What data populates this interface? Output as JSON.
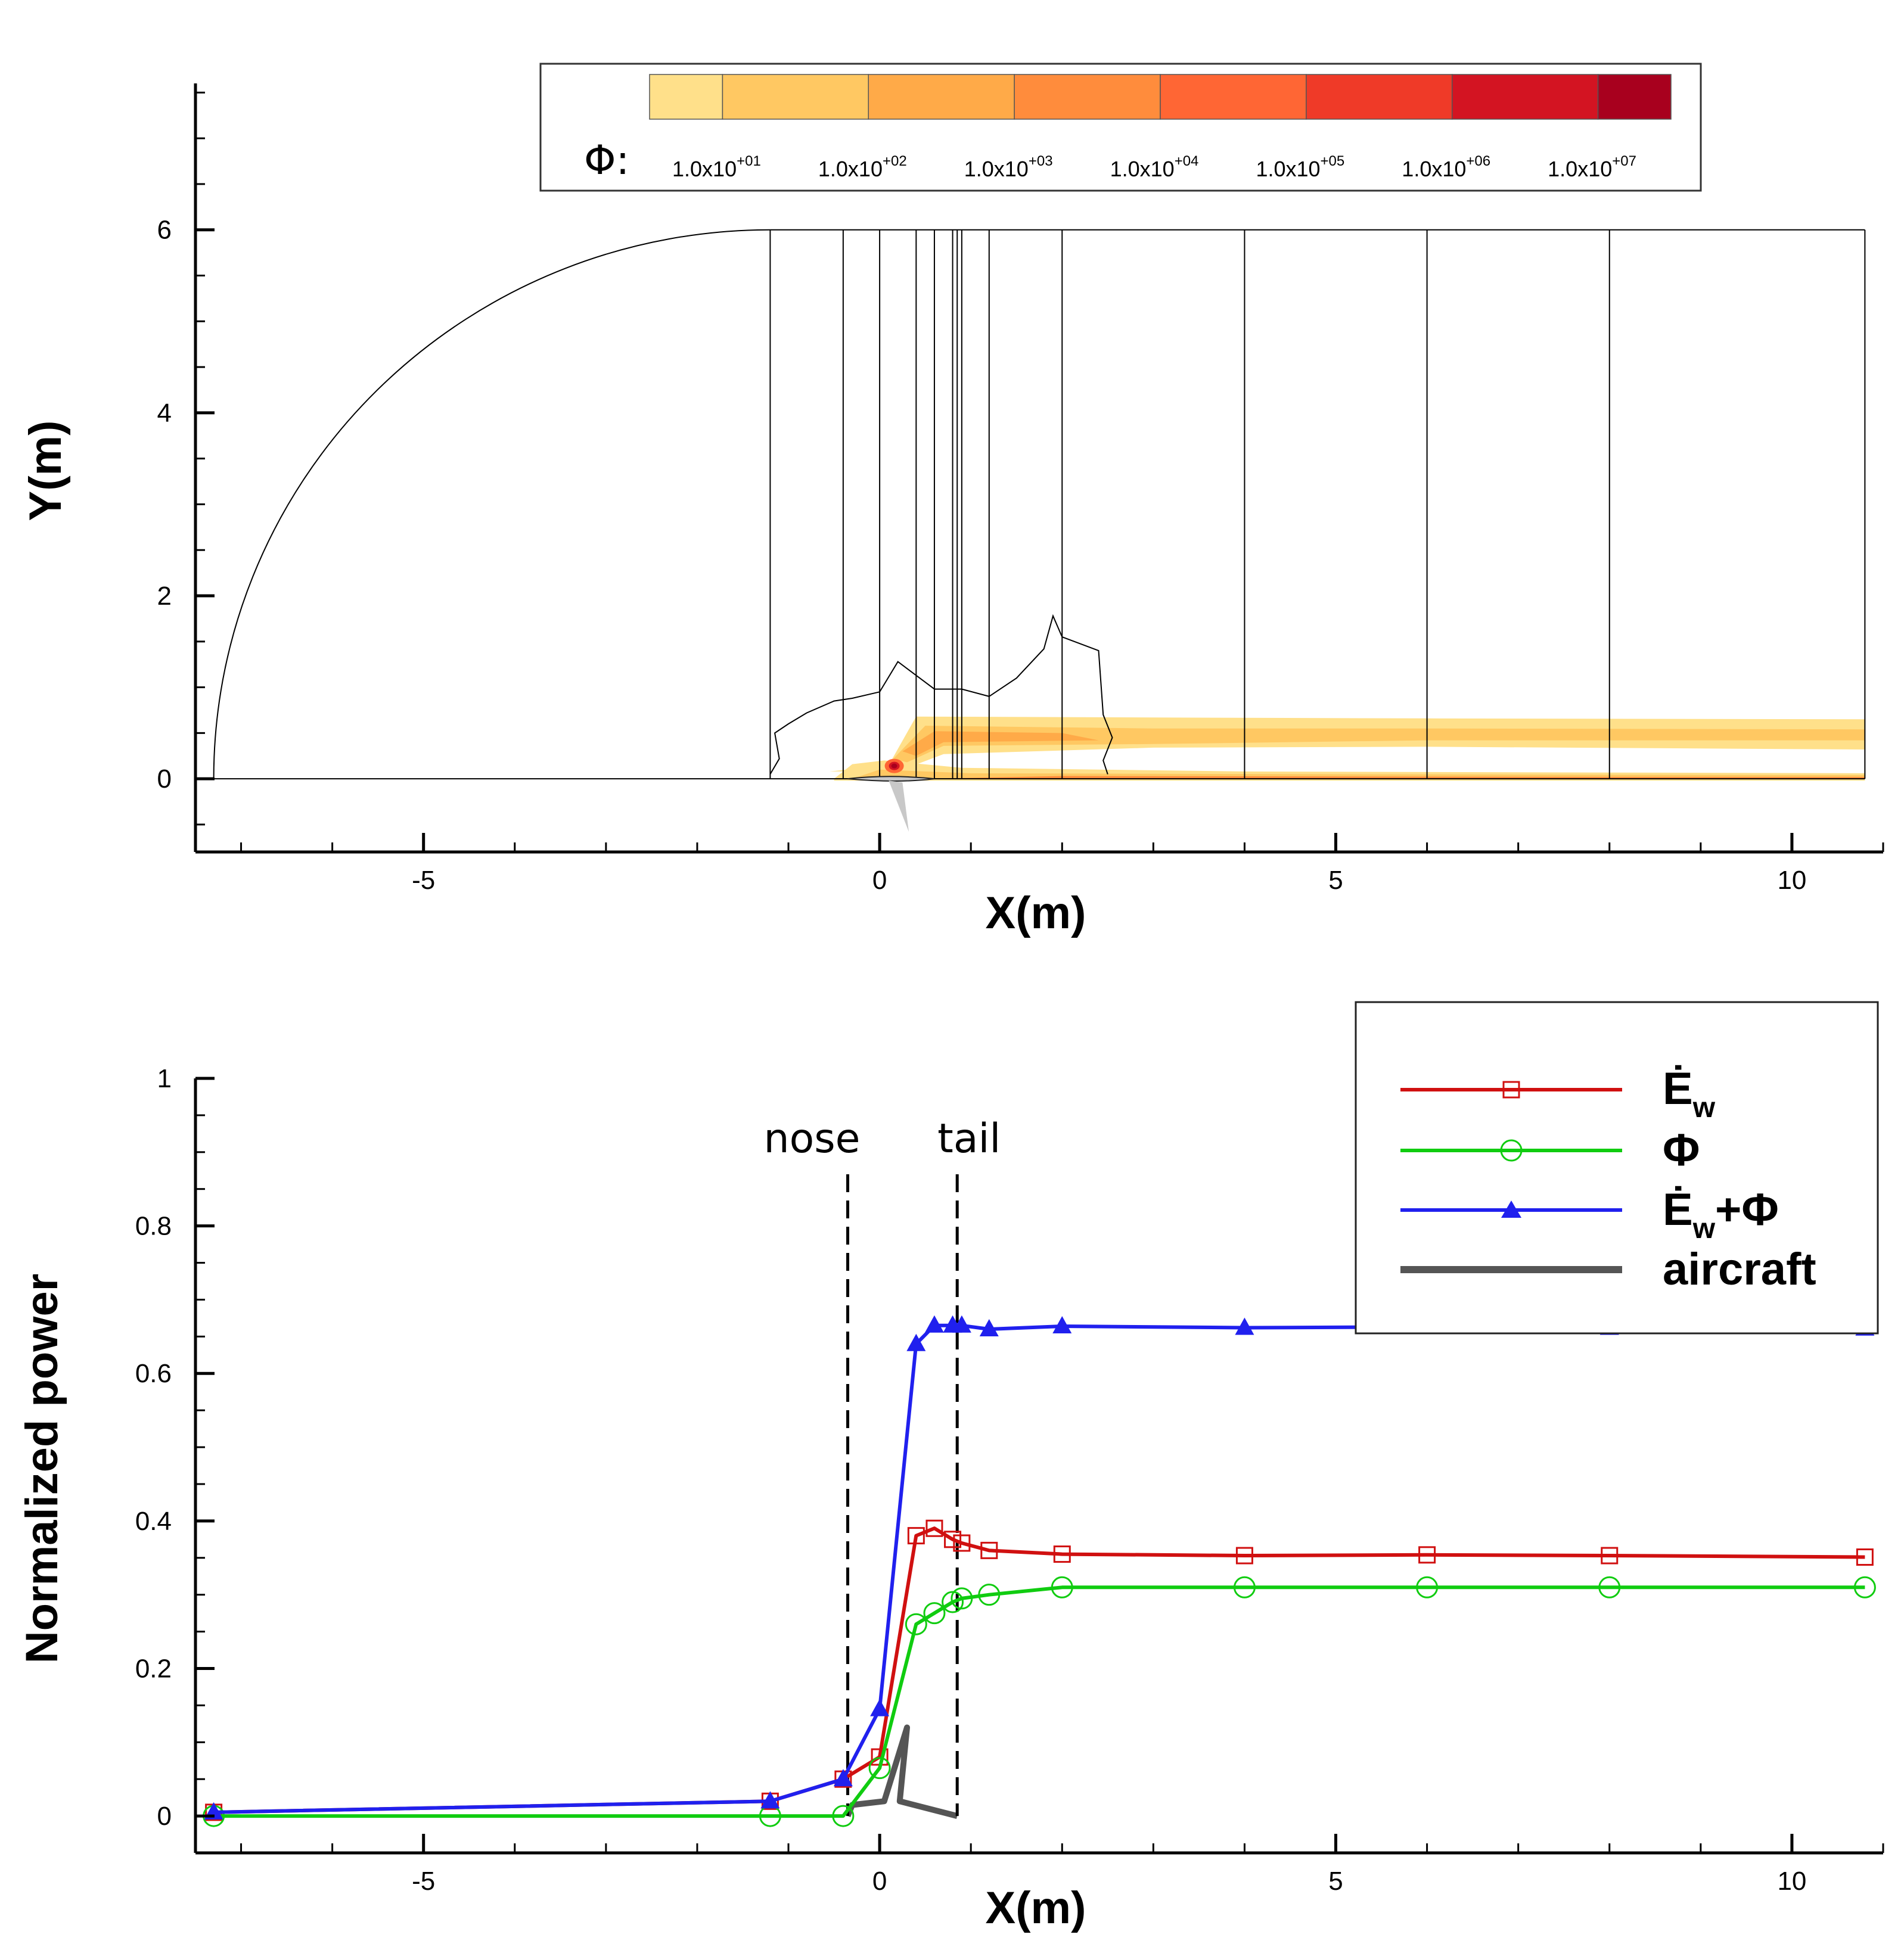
{
  "colors": {
    "E_w": "#d01010",
    "Phi": "#10cc10",
    "E_w_plus_Phi": "#2020ee",
    "aircraft": "#555555",
    "contours": [
      "#ffe08a",
      "#ffc862",
      "#ffaa48",
      "#ff8c3c",
      "#ff6634",
      "#ef3a28",
      "#d31422",
      "#a8001e"
    ]
  },
  "chart_data": [
    {
      "type": "contour",
      "xlabel": "X(m)",
      "ylabel": "Y(m)",
      "xlim": [
        -7.5,
        11
      ],
      "ylim": [
        -0.8,
        7.6
      ],
      "xticks": [
        -5,
        0,
        5,
        10
      ],
      "yticks": [
        0,
        2,
        4,
        6
      ],
      "colorbar": {
        "symbol": "Φ:",
        "levels": [
          {
            "mantissa": "1.0x10",
            "exp": "+01"
          },
          {
            "mantissa": "1.0x10",
            "exp": "+02"
          },
          {
            "mantissa": "1.0x10",
            "exp": "+03"
          },
          {
            "mantissa": "1.0x10",
            "exp": "+04"
          },
          {
            "mantissa": "1.0x10",
            "exp": "+05"
          },
          {
            "mantissa": "1.0x10",
            "exp": "+06"
          },
          {
            "mantissa": "1.0x10",
            "exp": "+07"
          }
        ]
      },
      "domain": {
        "x_inlet": -7.3,
        "x_outlet": 10.8,
        "y_top": 6
      },
      "section_planes_x": [
        -1.2,
        -0.4,
        0,
        0.4,
        0.6,
        0.8,
        0.85,
        0.9,
        1.2,
        2,
        4,
        6,
        8,
        10.8
      ]
    },
    {
      "type": "line",
      "xlabel": "X(m)",
      "ylabel": "Normalized power",
      "xlim": [
        -7.5,
        11
      ],
      "ylim": [
        -0.05,
        1
      ],
      "xticks": [
        -5,
        0,
        5,
        10
      ],
      "yticks": [
        0,
        0.2,
        0.4,
        0.6,
        0.8,
        1
      ],
      "annotations": [
        {
          "label": "nose",
          "x": -0.35
        },
        {
          "label": "tail",
          "x": 0.85
        }
      ],
      "legend_labels": {
        "e_w": {
          "base": "Ė",
          "sub": "w"
        },
        "phi": "Φ",
        "sum": {
          "base": "Ė",
          "sub": "w",
          "rest": "+Φ"
        },
        "aircraft": "aircraft"
      },
      "series": [
        {
          "name": "E_w",
          "marker": "square",
          "x": [
            -7.3,
            -1.2,
            -0.4,
            0,
            0.4,
            0.6,
            0.8,
            0.9,
            1.2,
            2,
            4,
            6,
            8,
            10.8
          ],
          "y": [
            0.005,
            0.02,
            0.05,
            0.08,
            0.38,
            0.39,
            0.375,
            0.37,
            0.36,
            0.355,
            0.353,
            0.354,
            0.353,
            0.351
          ]
        },
        {
          "name": "Phi",
          "marker": "circle",
          "x": [
            -7.3,
            -1.2,
            -0.4,
            0,
            0.4,
            0.6,
            0.8,
            0.9,
            1.2,
            2,
            4,
            6,
            8,
            10.8
          ],
          "y": [
            0,
            0,
            0,
            0.065,
            0.26,
            0.275,
            0.29,
            0.295,
            0.3,
            0.31,
            0.31,
            0.31,
            0.31,
            0.31
          ]
        },
        {
          "name": "E_w+Phi",
          "marker": "triangle",
          "x": [
            -7.3,
            -1.2,
            -0.4,
            0,
            0.4,
            0.6,
            0.8,
            0.9,
            1.2,
            2,
            4,
            6,
            8,
            10.8
          ],
          "y": [
            0.005,
            0.02,
            0.05,
            0.145,
            0.64,
            0.665,
            0.665,
            0.665,
            0.66,
            0.664,
            0.662,
            0.663,
            0.662,
            0.661
          ]
        }
      ]
    }
  ]
}
